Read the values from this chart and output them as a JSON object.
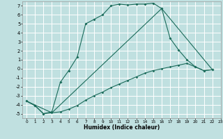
{
  "xlabel": "Humidex (Indice chaleur)",
  "xlim": [
    -0.5,
    23
  ],
  "ylim": [
    -5.5,
    7.5
  ],
  "xticks": [
    0,
    1,
    2,
    3,
    4,
    5,
    6,
    7,
    8,
    9,
    10,
    11,
    12,
    13,
    14,
    15,
    16,
    17,
    18,
    19,
    20,
    21,
    22,
    23
  ],
  "yticks": [
    -5,
    -4,
    -3,
    -2,
    -1,
    0,
    1,
    2,
    3,
    4,
    5,
    6,
    7
  ],
  "bg_color": "#c0e0e0",
  "line_color": "#1a6b5a",
  "grid_color": "#ffffff",
  "line1_x": [
    0,
    1,
    2,
    3,
    4,
    5,
    6,
    7,
    8,
    9,
    10,
    11,
    12,
    13,
    14,
    15,
    16,
    17,
    18,
    19,
    20,
    21,
    22
  ],
  "line1_y": [
    -3.6,
    -4.1,
    -5.0,
    -4.8,
    -1.5,
    -0.2,
    1.3,
    5.0,
    5.5,
    6.0,
    7.0,
    7.2,
    7.1,
    7.2,
    7.2,
    7.3,
    6.7,
    3.4,
    2.1,
    1.0,
    0.2,
    -0.2,
    -0.1
  ],
  "line2_x": [
    0,
    1,
    2,
    3,
    4,
    5,
    6,
    7,
    8,
    9,
    10,
    11,
    12,
    13,
    14,
    15,
    16,
    17,
    18,
    19,
    20,
    21,
    22
  ],
  "line2_y": [
    -3.6,
    -4.1,
    -5.0,
    -4.9,
    -4.8,
    -4.5,
    -4.1,
    -3.5,
    -3.0,
    -2.6,
    -2.1,
    -1.7,
    -1.3,
    -0.9,
    -0.5,
    -0.2,
    0.0,
    0.2,
    0.4,
    0.6,
    0.2,
    -0.2,
    -0.1
  ],
  "line3_x": [
    0,
    3,
    16,
    22
  ],
  "line3_y": [
    -3.6,
    -4.9,
    6.7,
    -0.1
  ]
}
